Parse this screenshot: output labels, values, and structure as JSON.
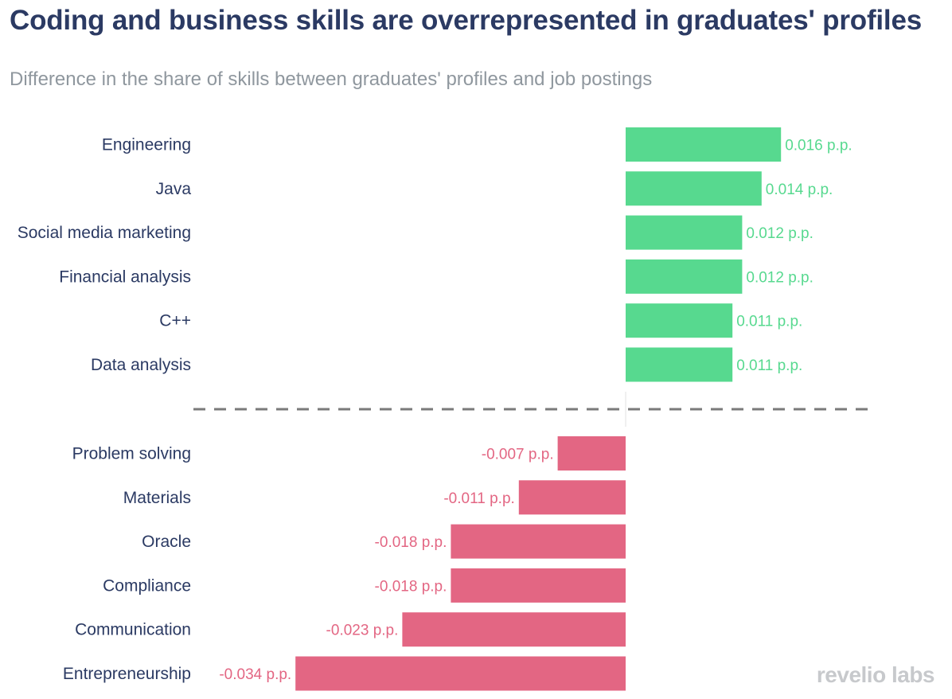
{
  "title": "Coding and business skills are overrepresented in graduates' profiles",
  "subtitle": "Difference in the share of skills between graduates' profiles and job postings",
  "brand": "revelio labs",
  "colors": {
    "positive": "#57d98f",
    "negative": "#e36683",
    "text": "#2b3a63",
    "divider": "#7a7a7a"
  },
  "chart_data": {
    "type": "bar",
    "orientation": "horizontal",
    "title": "Coding and business skills are overrepresented in graduates' profiles",
    "subtitle": "Difference in the share of skills between graduates' profiles and job postings",
    "unit": "p.p.",
    "categories": [
      "Engineering",
      "Java",
      "Social media marketing",
      "Financial analysis",
      "C++",
      "Data analysis",
      "Problem solving",
      "Materials",
      "Oracle",
      "Compliance",
      "Communication",
      "Entrepreneurship"
    ],
    "values": [
      0.016,
      0.014,
      0.012,
      0.012,
      0.011,
      0.011,
      -0.007,
      -0.011,
      -0.018,
      -0.018,
      -0.023,
      -0.034
    ],
    "labels": [
      "0.016 p.p.",
      "0.014 p.p.",
      "0.012 p.p.",
      "0.012 p.p.",
      "0.011 p.p.",
      "0.011 p.p.",
      "-0.007 p.p.",
      "-0.011 p.p.",
      "-0.018 p.p.",
      "-0.018 p.p.",
      "-0.023 p.p.",
      "-0.034 p.p."
    ],
    "xlim": [
      -0.036,
      0.025
    ],
    "grid": false,
    "divider": "dashed line between overrepresented and underrepresented skills"
  }
}
